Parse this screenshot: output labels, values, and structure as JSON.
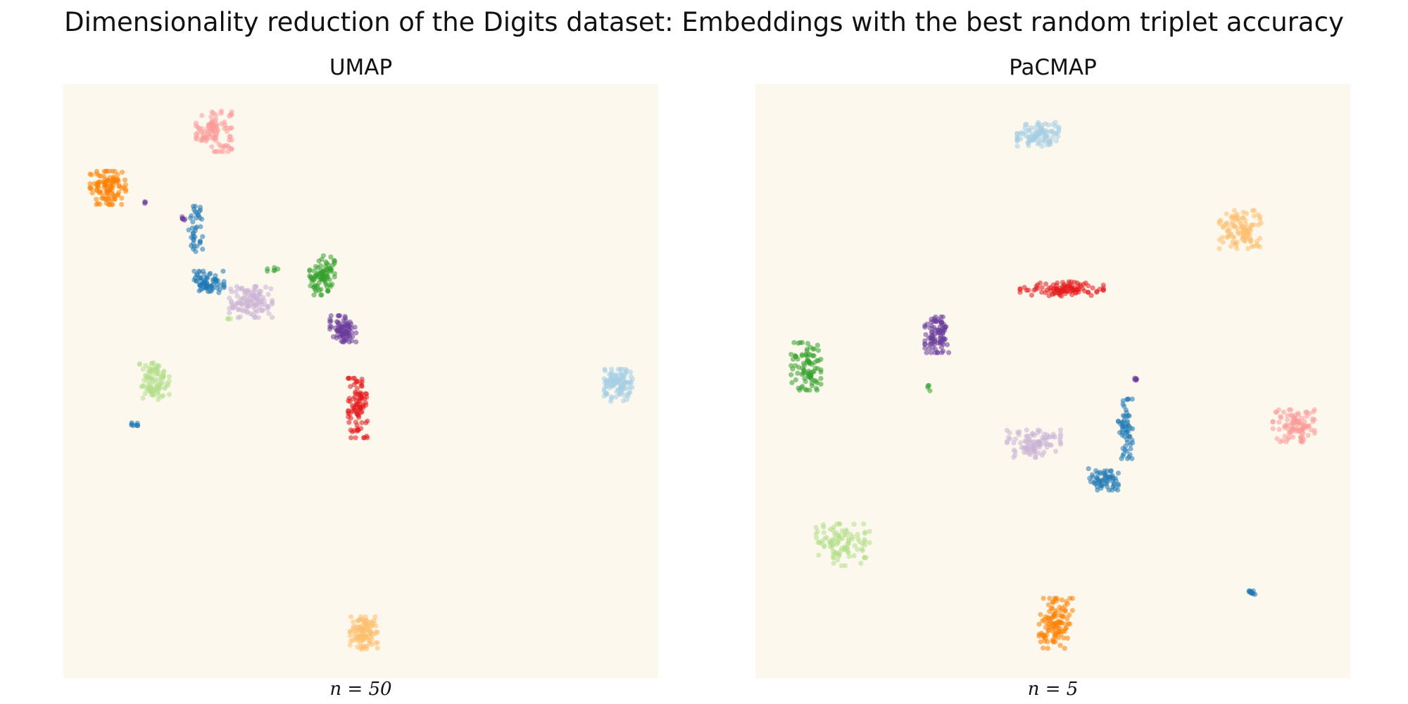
{
  "figure": {
    "title": "Dimensionality reduction of the Digits dataset: Embeddings with the best random triplet accuracy"
  },
  "colors": {
    "background": "#fdf8ee",
    "classes": [
      "#1f78b4",
      "#a6cee3",
      "#33a02c",
      "#b2df8a",
      "#e31a1c",
      "#fb9a99",
      "#ff7f00",
      "#fdbf6f",
      "#6a3d9a",
      "#cab2d6"
    ]
  },
  "chart_data": [
    {
      "type": "scatter",
      "title": "UMAP",
      "parameter_label": "n = 50",
      "xlim": [
        0,
        100
      ],
      "ylim": [
        0,
        100
      ],
      "axes_visible": false,
      "grid": false,
      "clusters": [
        {
          "class": 5,
          "center": [
            25.3,
            92.2
          ],
          "spread": [
            3.0,
            3.6
          ],
          "n": 100
        },
        {
          "class": 6,
          "center": [
            7.5,
            82.5
          ],
          "spread": [
            3.0,
            2.8
          ],
          "n": 110
        },
        {
          "class": 0,
          "center": [
            22.2,
            75.6
          ],
          "spread": [
            1.2,
            3.8
          ],
          "n": 40
        },
        {
          "class": 0,
          "center": [
            24.5,
            66.7
          ],
          "spread": [
            2.5,
            1.8
          ],
          "n": 70
        },
        {
          "class": 9,
          "center": [
            31.5,
            63.3
          ],
          "spread": [
            3.6,
            2.6
          ],
          "n": 110
        },
        {
          "class": 2,
          "center": [
            43.5,
            67.8
          ],
          "spread": [
            2.1,
            3.3
          ],
          "n": 90
        },
        {
          "class": 8,
          "center": [
            47.0,
            58.8
          ],
          "spread": [
            2.2,
            2.2
          ],
          "n": 85
        },
        {
          "class": 3,
          "center": [
            15.3,
            50.2
          ],
          "spread": [
            2.5,
            3.3
          ],
          "n": 95
        },
        {
          "class": 1,
          "center": [
            93.3,
            49.3
          ],
          "spread": [
            2.4,
            2.7
          ],
          "n": 110
        },
        {
          "class": 4,
          "center": [
            49.5,
            45.5
          ],
          "spread": [
            1.6,
            5.0
          ],
          "n": 95
        },
        {
          "class": 7,
          "center": [
            50.5,
            7.7
          ],
          "spread": [
            2.3,
            2.7
          ],
          "n": 110
        },
        {
          "class": 0,
          "center": [
            11.9,
            42.7
          ],
          "spread": [
            0.6,
            0.3
          ],
          "n": 8
        },
        {
          "class": 2,
          "center": [
            35.5,
            68.8
          ],
          "spread": [
            1.2,
            0.3
          ],
          "n": 6
        },
        {
          "class": 8,
          "center": [
            20.2,
            77.5
          ],
          "spread": [
            0.8,
            0.5
          ],
          "n": 6
        },
        {
          "class": 3,
          "center": [
            27.9,
            60.5
          ],
          "spread": [
            0.3,
            0.3
          ],
          "n": 3
        },
        {
          "class": 8,
          "center": [
            13.8,
            80.2
          ],
          "spread": [
            0.3,
            0.4
          ],
          "n": 3
        }
      ]
    },
    {
      "type": "scatter",
      "title": "PaCMAP",
      "parameter_label": "n = 5",
      "xlim": [
        0,
        100
      ],
      "ylim": [
        0,
        100
      ],
      "axes_visible": false,
      "grid": false,
      "clusters": [
        {
          "class": 1,
          "center": [
            47.5,
            91.5
          ],
          "spread": [
            3.5,
            2.0
          ],
          "n": 100
        },
        {
          "class": 7,
          "center": [
            81.5,
            75.5
          ],
          "spread": [
            3.5,
            3.2
          ],
          "n": 110
        },
        {
          "class": 4,
          "center": [
            51.5,
            65.5
          ],
          "spread": [
            7.0,
            1.2
          ],
          "n": 100
        },
        {
          "class": 8,
          "center": [
            30.5,
            57.8
          ],
          "spread": [
            2.0,
            3.0
          ],
          "n": 90
        },
        {
          "class": 2,
          "center": [
            8.5,
            52.5
          ],
          "spread": [
            2.5,
            4.0
          ],
          "n": 90
        },
        {
          "class": 5,
          "center": [
            90.5,
            42.5
          ],
          "spread": [
            3.5,
            2.7
          ],
          "n": 100
        },
        {
          "class": 9,
          "center": [
            46.8,
            39.5
          ],
          "spread": [
            4.5,
            2.3
          ],
          "n": 100
        },
        {
          "class": 0,
          "center": [
            62.2,
            42.0
          ],
          "spread": [
            1.2,
            5.0
          ],
          "n": 60
        },
        {
          "class": 0,
          "center": [
            58.5,
            33.5
          ],
          "spread": [
            2.5,
            1.8
          ],
          "n": 60
        },
        {
          "class": 3,
          "center": [
            14.7,
            22.5
          ],
          "spread": [
            4.5,
            3.5
          ],
          "n": 100
        },
        {
          "class": 6,
          "center": [
            50.5,
            9.3
          ],
          "spread": [
            2.8,
            4.2
          ],
          "n": 110
        },
        {
          "class": 0,
          "center": [
            83.5,
            14.5
          ],
          "spread": [
            0.6,
            0.5
          ],
          "n": 12
        },
        {
          "class": 8,
          "center": [
            64.0,
            50.3
          ],
          "spread": [
            0.4,
            0.5
          ],
          "n": 6
        },
        {
          "class": 2,
          "center": [
            29.2,
            48.9
          ],
          "spread": [
            0.3,
            0.5
          ],
          "n": 4
        }
      ]
    }
  ]
}
